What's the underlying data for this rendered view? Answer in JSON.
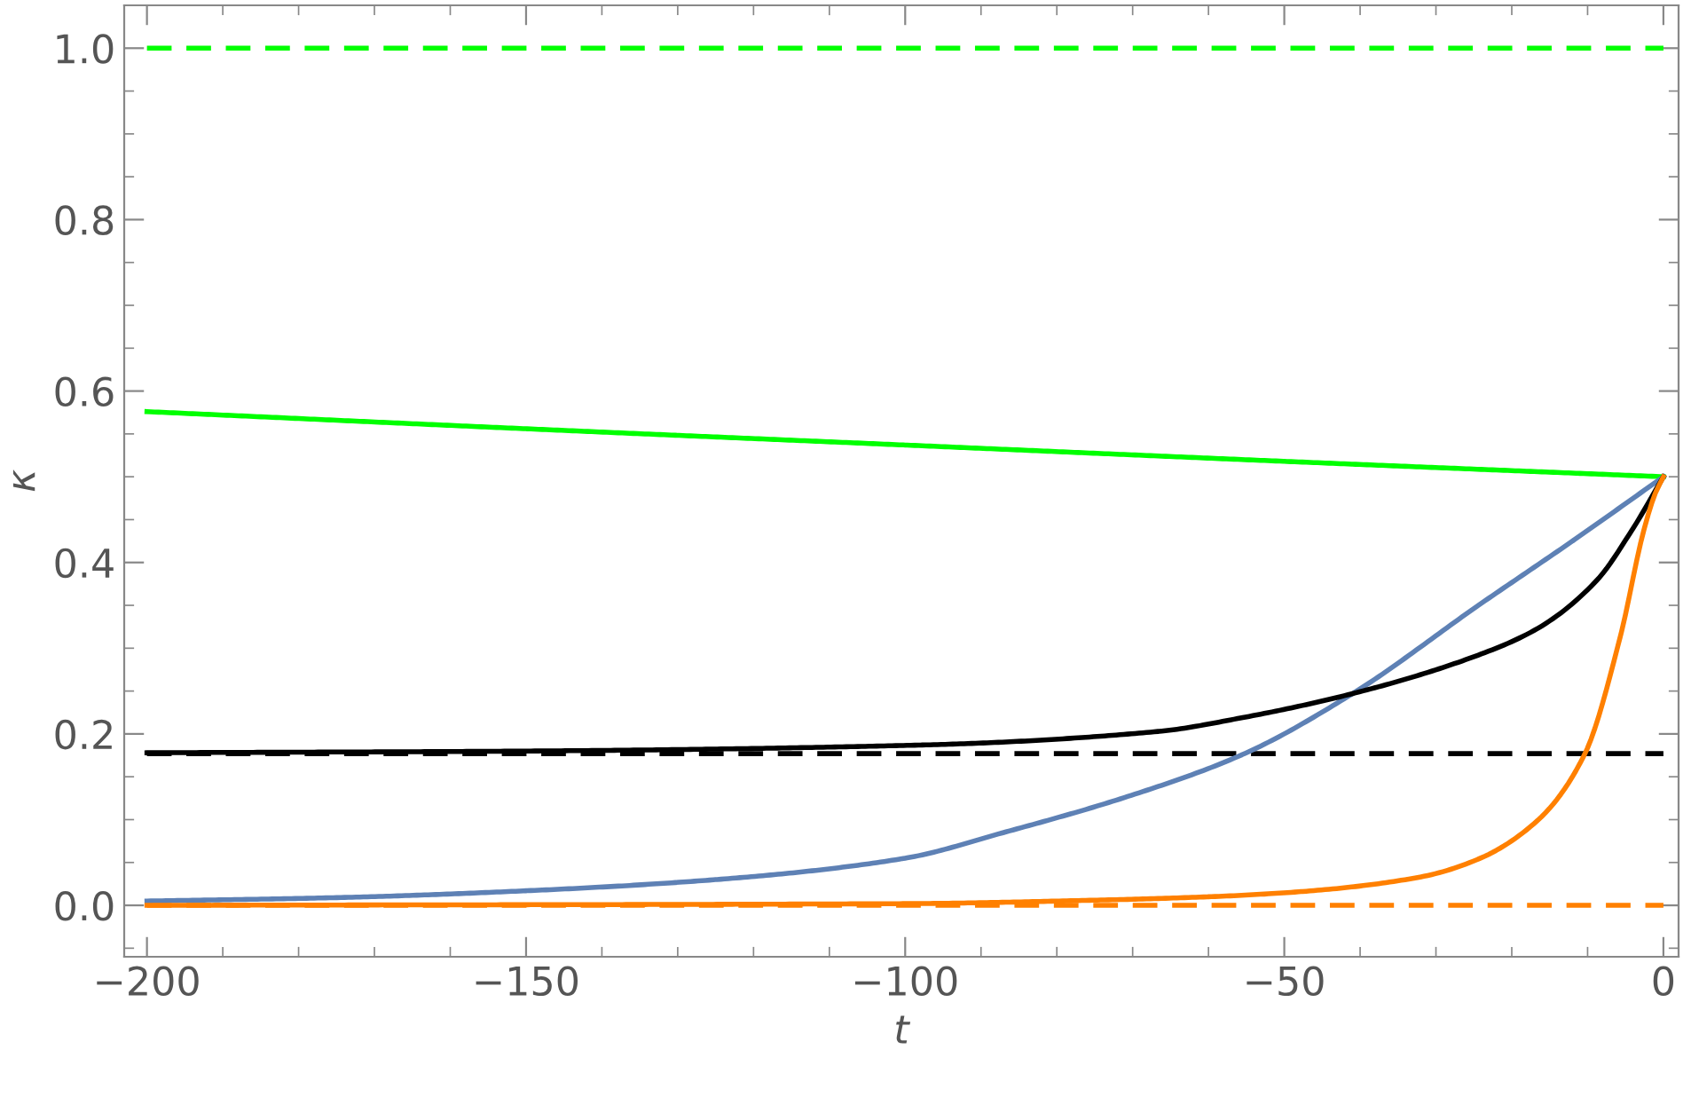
{
  "chart_data": {
    "type": "line",
    "xlabel": "t",
    "ylabel": "κ",
    "xlim": [
      -203,
      2
    ],
    "ylim": [
      -0.06,
      1.05
    ],
    "xticks": [
      {
        "value": -200,
        "label": "−200"
      },
      {
        "value": -150,
        "label": "−150"
      },
      {
        "value": -100,
        "label": "−100"
      },
      {
        "value": -50,
        "label": "−50"
      },
      0
    ],
    "yticks": [
      {
        "value": 0,
        "label": "0.0"
      },
      {
        "value": 0.2,
        "label": "0.2"
      },
      {
        "value": 0.4,
        "label": "0.4"
      },
      {
        "value": 0.6,
        "label": "0.6"
      },
      {
        "value": 0.8,
        "label": "0.8"
      },
      {
        "value": 1,
        "label": "1.0"
      }
    ],
    "grid": false,
    "marker": "none",
    "series": [
      {
        "color": "#00ff00",
        "line_style": "dashed",
        "x": [
          -200,
          0
        ],
        "values": [
          1.0,
          1.0
        ]
      },
      {
        "color": "#000000",
        "line_style": "dashed",
        "x": [
          -200,
          0
        ],
        "values": [
          0.177,
          0.177
        ]
      },
      {
        "color": "#ff8000",
        "line_style": "dashed",
        "x": [
          -200,
          0
        ],
        "values": [
          0.0,
          0.0
        ]
      },
      {
        "color": "#00ff00",
        "line_style": "solid",
        "x": [
          -200,
          -150,
          -100,
          -50,
          0
        ],
        "values": [
          0.576,
          0.556,
          0.537,
          0.518,
          0.5
        ]
      },
      {
        "color": "#5e81b5",
        "line_style": "solid",
        "x": [
          -200,
          -175,
          -150,
          -125,
          -100,
          -87,
          -71,
          -55.5,
          -41,
          -24.4,
          -12,
          0
        ],
        "values": [
          0.005,
          0.009,
          0.017,
          0.03,
          0.055,
          0.085,
          0.126,
          0.176,
          0.247,
          0.35,
          0.425,
          0.5
        ]
      },
      {
        "color": "#000000",
        "line_style": "solid",
        "x": [
          -200,
          -150,
          -98,
          -66.5,
          -55.5,
          -41,
          -24.4,
          -16.6,
          -8.8,
          -4.2,
          0
        ],
        "values": [
          0.178,
          0.18,
          0.187,
          0.203,
          0.219,
          0.247,
          0.292,
          0.323,
          0.379,
          0.437,
          0.5
        ]
      },
      {
        "color": "#ff8000",
        "line_style": "solid",
        "x": [
          -200,
          -100,
          -75,
          -60,
          -47.8,
          -32.1,
          -24.4,
          -16.6,
          -10.4,
          -5.7,
          -2.6,
          -1.1,
          0
        ],
        "values": [
          0.0,
          0.002,
          0.006,
          0.01,
          0.016,
          0.033,
          0.054,
          0.099,
          0.176,
          0.313,
          0.437,
          0.48,
          0.5
        ]
      }
    ]
  }
}
